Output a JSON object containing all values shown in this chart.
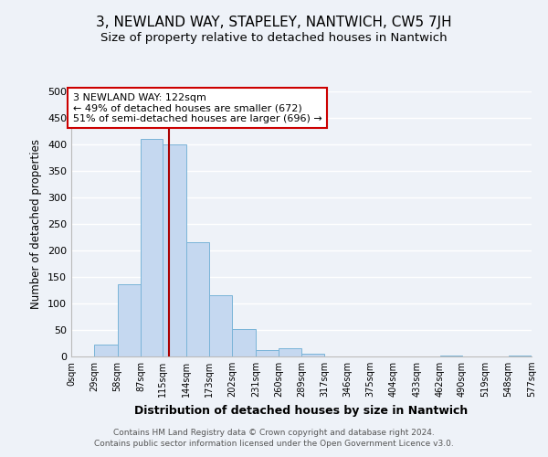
{
  "title": "3, NEWLAND WAY, STAPELEY, NANTWICH, CW5 7JH",
  "subtitle": "Size of property relative to detached houses in Nantwich",
  "xlabel": "Distribution of detached houses by size in Nantwich",
  "ylabel": "Number of detached properties",
  "bin_edges": [
    0,
    29,
    58,
    87,
    115,
    144,
    173,
    202,
    231,
    260,
    289,
    317,
    346,
    375,
    404,
    433,
    462,
    490,
    519,
    548,
    577
  ],
  "bin_counts": [
    0,
    22,
    137,
    410,
    400,
    215,
    115,
    52,
    12,
    16,
    6,
    0,
    0,
    0,
    0,
    0,
    2,
    0,
    0,
    1
  ],
  "bar_color": "#c5d8f0",
  "bar_edge_color": "#7ab4d8",
  "vline_x": 122,
  "vline_color": "#aa0000",
  "ylim": [
    0,
    500
  ],
  "yticks": [
    0,
    50,
    100,
    150,
    200,
    250,
    300,
    350,
    400,
    450,
    500
  ],
  "xtick_labels": [
    "0sqm",
    "29sqm",
    "58sqm",
    "87sqm",
    "115sqm",
    "144sqm",
    "173sqm",
    "202sqm",
    "231sqm",
    "260sqm",
    "289sqm",
    "317sqm",
    "346sqm",
    "375sqm",
    "404sqm",
    "433sqm",
    "462sqm",
    "490sqm",
    "519sqm",
    "548sqm",
    "577sqm"
  ],
  "annotation_title": "3 NEWLAND WAY: 122sqm",
  "annotation_line1": "← 49% of detached houses are smaller (672)",
  "annotation_line2": "51% of semi-detached houses are larger (696) →",
  "annotation_box_color": "#ffffff",
  "annotation_box_edge_color": "#cc0000",
  "footer1": "Contains HM Land Registry data © Crown copyright and database right 2024.",
  "footer2": "Contains public sector information licensed under the Open Government Licence v3.0.",
  "bg_color": "#eef2f8",
  "grid_color": "#ffffff",
  "title_fontsize": 11,
  "subtitle_fontsize": 9.5
}
